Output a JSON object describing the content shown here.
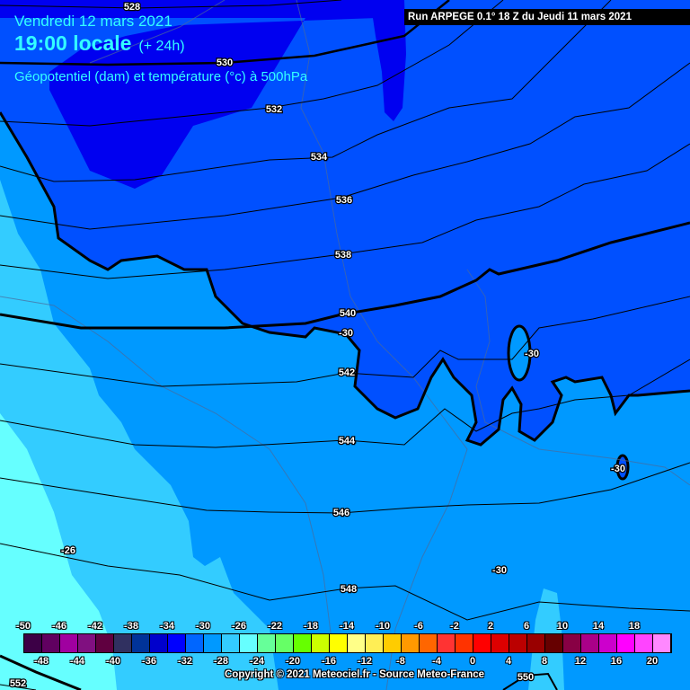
{
  "header": {
    "date": "Vendredi 12 mars 2021",
    "time": "19:00 locale",
    "lead": "(+ 24h)",
    "parameter": "Géopotentiel (dam) et température (°c) à 500hPa",
    "run": "Run ARPEGE 0.1° 18 Z du Jeudi 11 mars 2021"
  },
  "geopotential_labels": [
    "528",
    "530",
    "532",
    "534",
    "536",
    "538",
    "540",
    "542",
    "544",
    "546",
    "548",
    "550",
    "552"
  ],
  "temperature_labels": [
    "-30",
    "-30",
    "-30",
    "-30",
    "-26"
  ],
  "zone_colors": {
    "t_-34": "#0000f0",
    "t_-32": "#0050ff",
    "t_-30": "#0099ff",
    "t_-28": "#33ccff",
    "t_-26": "#66ffff"
  },
  "legend": {
    "values": [
      -50,
      -48,
      -46,
      -44,
      -42,
      -40,
      -38,
      -36,
      -34,
      -32,
      -30,
      -28,
      -26,
      -24,
      -22,
      -20,
      -18,
      -16,
      -14,
      -12,
      -10,
      -8,
      -6,
      -4,
      -2,
      0,
      2,
      4,
      6,
      8,
      10,
      12,
      14,
      16,
      18,
      20
    ],
    "colors": [
      "#3c0046",
      "#600060",
      "#a000a0",
      "#801080",
      "#600040",
      "#303060",
      "#003399",
      "#0000cc",
      "#0000ff",
      "#0066ff",
      "#0099ff",
      "#33ccff",
      "#66ffff",
      "#66ff99",
      "#66ff66",
      "#66ff00",
      "#ccff00",
      "#ffff00",
      "#ffff88",
      "#ffee55",
      "#ffcc00",
      "#ff9900",
      "#ff6600",
      "#ff3333",
      "#ff3300",
      "#ff0000",
      "#dd0000",
      "#bb0000",
      "#990000",
      "#660000",
      "#880044",
      "#aa0088",
      "#cc00cc",
      "#ff00ff",
      "#ff44ff",
      "#ff88ff"
    ]
  },
  "copyright": "Copyright © 2021 Meteociel.fr - Source Meteo-France"
}
